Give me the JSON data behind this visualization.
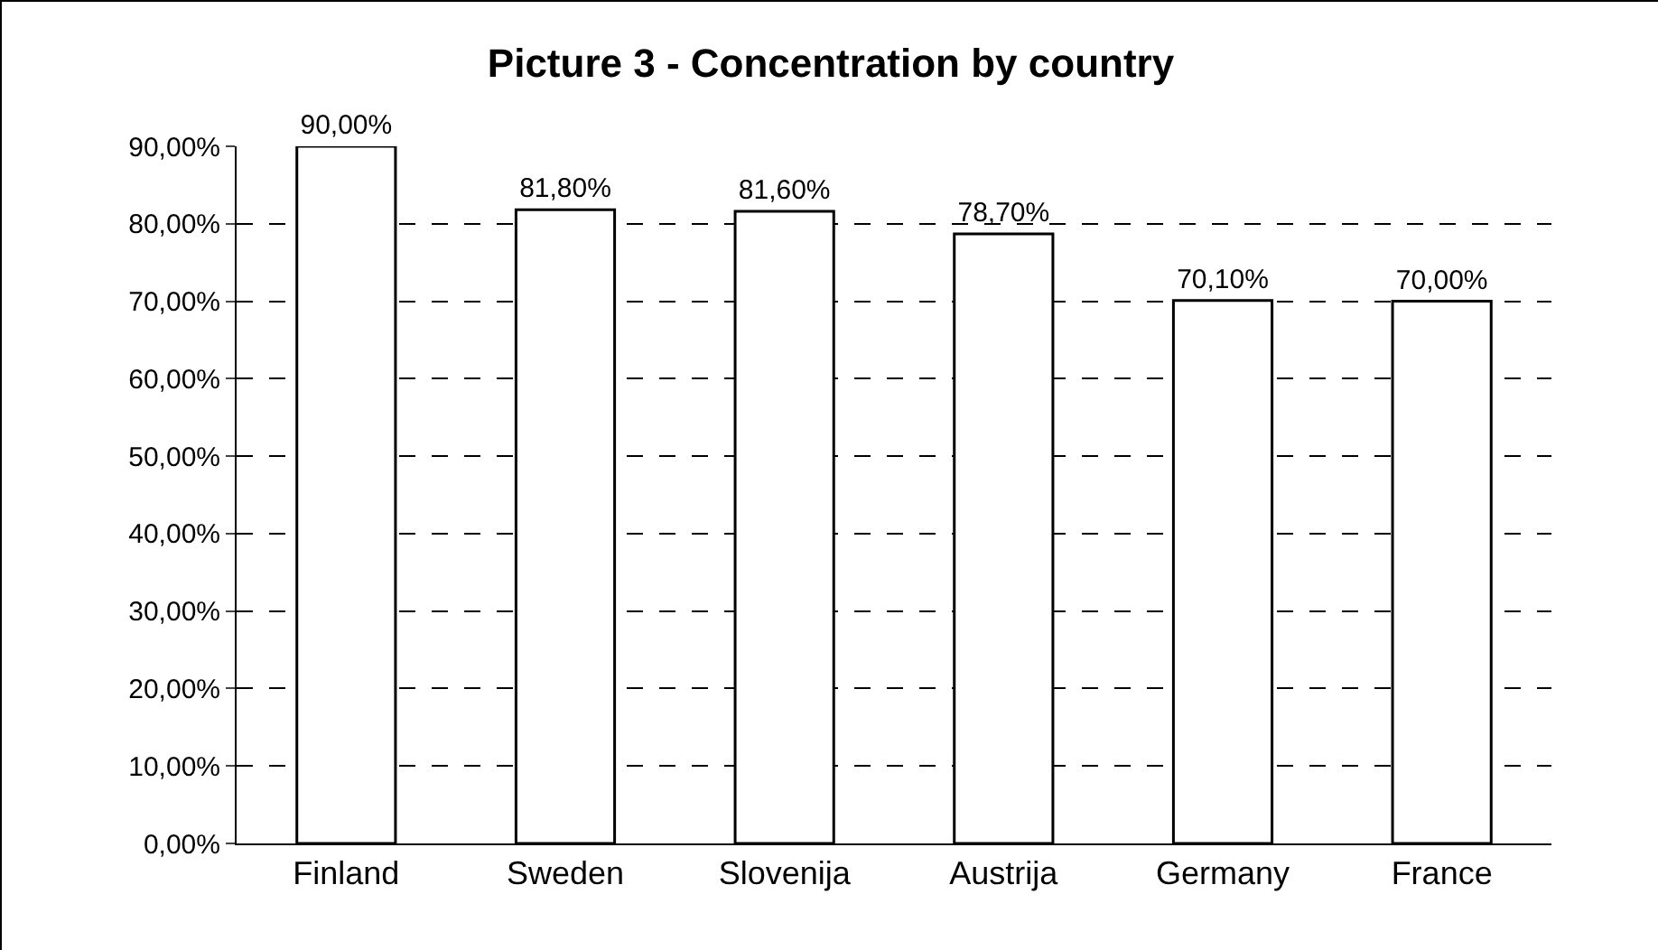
{
  "chart_data": {
    "type": "bar",
    "title": "Picture 3 - Concentration by country",
    "categories": [
      "Finland",
      "Sweden",
      "Slovenija",
      "Austrija",
      "Germany",
      "France"
    ],
    "values": [
      90,
      81.8,
      81.6,
      78.7,
      70.1,
      70.0
    ],
    "value_labels": [
      "90,00%",
      "81,80%",
      "81,60%",
      "78,70%",
      "70,10%",
      "70,00%"
    ],
    "color": "#ffffff",
    "ylim": [
      0,
      90
    ],
    "yticks": [
      {
        "value": 0,
        "label": "0,00%"
      },
      {
        "value": 10,
        "label": "10,00%"
      },
      {
        "value": 20,
        "label": "20,00%"
      },
      {
        "value": 30,
        "label": "30,00%"
      },
      {
        "value": 40,
        "label": "40,00%"
      },
      {
        "value": 50,
        "label": "50,00%"
      },
      {
        "value": 60,
        "label": "60,00%"
      },
      {
        "value": 70,
        "label": "70,00%"
      },
      {
        "value": 80,
        "label": "80,00%"
      },
      {
        "value": 90,
        "label": "90,00%"
      }
    ],
    "grid": "y",
    "line_style": "dashed"
  }
}
